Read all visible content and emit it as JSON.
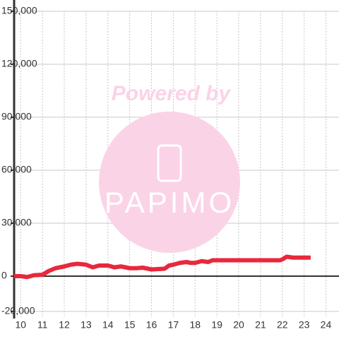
{
  "chart_data": {
    "type": "line",
    "watermark": [
      "Powered by",
      "PAPIMO"
    ],
    "x": [
      9.7,
      10,
      10.3,
      10.6,
      11,
      11.3,
      11.6,
      12,
      12.3,
      12.6,
      13,
      13.3,
      13.6,
      14,
      14.3,
      14.6,
      15,
      15.3,
      15.6,
      16,
      16.3,
      16.6,
      16.8,
      17,
      17.3,
      17.6,
      17.8,
      18,
      18.3,
      18.6,
      18.8,
      19,
      20,
      21,
      21.9,
      22,
      22.2,
      22.5,
      23,
      23.3
    ],
    "series": [
      {
        "color": "#e8283c",
        "values": [
          0,
          0,
          -500,
          500,
          800,
          3000,
          4500,
          5500,
          6500,
          7000,
          6500,
          5000,
          6000,
          6000,
          5000,
          5500,
          4500,
          4500,
          4800,
          3800,
          4000,
          4200,
          6000,
          6500,
          7500,
          8000,
          7500,
          7500,
          8500,
          8000,
          9000,
          9000,
          9000,
          9000,
          9000,
          9500,
          11000,
          10500,
          10500,
          10500
        ]
      }
    ],
    "xlim": [
      9.7,
      24.6
    ],
    "xticks": [
      10,
      11,
      12,
      13,
      14,
      15,
      16,
      17,
      18,
      19,
      20,
      21,
      22,
      23,
      24
    ],
    "ylim": [
      -20000,
      150000
    ],
    "yticks": [
      {
        "value": -20000,
        "label": "-20,000"
      },
      0,
      {
        "value": 30000,
        "label": "30,000"
      },
      {
        "value": 60000,
        "label": "60,000"
      },
      {
        "value": 90000,
        "label": "90,000"
      },
      {
        "value": 120000,
        "label": "120,000"
      },
      {
        "value": 150000,
        "label": "150,000"
      }
    ],
    "grid": true
  }
}
